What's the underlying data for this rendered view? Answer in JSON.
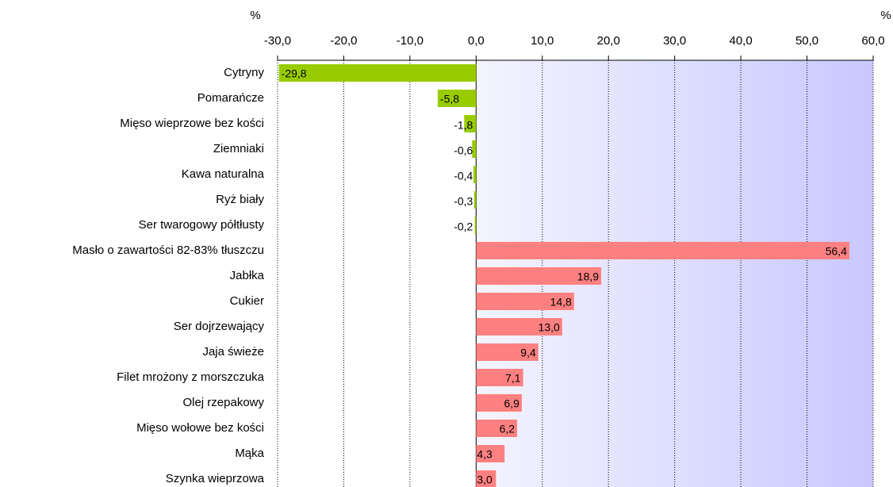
{
  "chart_data": {
    "type": "hbar",
    "xlabel_left": "%",
    "xlabel_right": "%",
    "categories": [
      "Cytryny",
      "Pomarańcze",
      "Mięso wieprzowe bez kości",
      "Ziemniaki",
      "Kawa naturalna",
      "Ryż biały",
      "Ser twarogowy półtłusty",
      "Masło o zawartości 82-83% tłuszczu",
      "Jabłka",
      "Cukier",
      "Ser dojrzewający",
      "Jaja świeże",
      "Filet mrożony z morszczuka",
      "Olej rzepakowy",
      "Mięso wołowe bez kości",
      "Mąka",
      "Szynka wieprzowa"
    ],
    "values": [
      -29.8,
      -5.8,
      -1.8,
      -0.6,
      -0.4,
      -0.3,
      -0.2,
      56.4,
      18.9,
      14.8,
      13.0,
      9.4,
      7.1,
      6.9,
      6.2,
      4.3,
      3.0
    ],
    "value_labels": [
      "-29,8",
      "-5,8",
      "-1,8",
      "-0,6",
      "-0,4",
      "-0,3",
      "-0,2",
      "56,4",
      "18,9",
      "14,8",
      "13,0",
      "9,4",
      "7,1",
      "6,9",
      "6,2",
      "4,3",
      "3,0"
    ],
    "negative_color": "#99cc00",
    "positive_color": "#ff8080",
    "xlim": [
      -30,
      60
    ],
    "xticks": [
      {
        "value": -30,
        "label": "-30,0"
      },
      {
        "value": -20,
        "label": "-20,0"
      },
      {
        "value": -10,
        "label": "-10,0"
      },
      {
        "value": 0,
        "label": "0,0"
      },
      {
        "value": 10,
        "label": "10,0"
      },
      {
        "value": 20,
        "label": "20,0"
      },
      {
        "value": 30,
        "label": "30,0"
      },
      {
        "value": 40,
        "label": "40,0"
      },
      {
        "value": 50,
        "label": "50,0"
      },
      {
        "value": 60,
        "label": "60,0"
      }
    ],
    "grid": true
  }
}
